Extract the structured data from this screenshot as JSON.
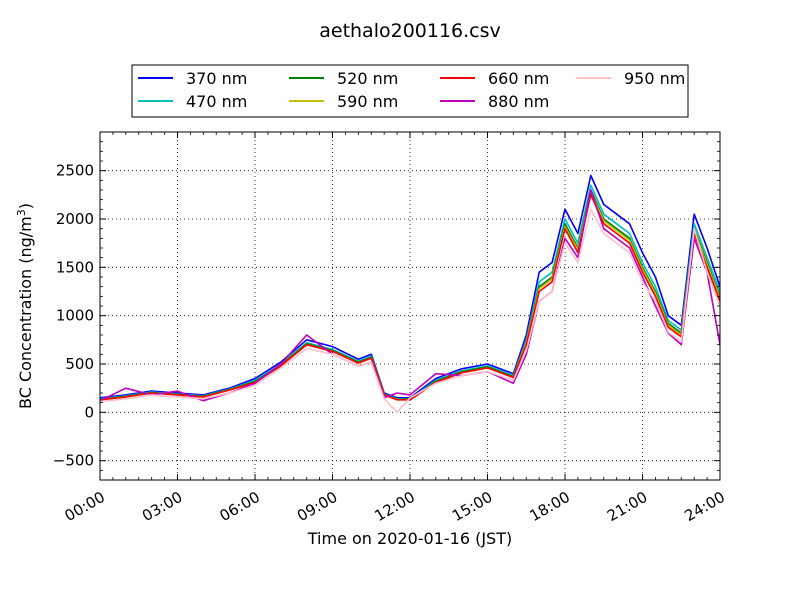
{
  "chart_data": {
    "type": "line",
    "title": "aethalo200116.csv",
    "xlabel": "Time on 2020-01-16 (JST)",
    "ylabel_main": "BC Concentration (ng/m",
    "ylabel_sup": "3",
    "ylabel_end": ")",
    "xlim": [
      0,
      24
    ],
    "ylim": [
      -700,
      2900
    ],
    "x_ticks": [
      0,
      3,
      6,
      9,
      12,
      15,
      18,
      21,
      24
    ],
    "x_tick_labels": [
      "00:00",
      "03:00",
      "06:00",
      "09:00",
      "12:00",
      "15:00",
      "18:00",
      "21:00",
      "24:00"
    ],
    "y_ticks": [
      -500,
      0,
      500,
      1000,
      1500,
      2000,
      2500
    ],
    "y_tick_labels": [
      "−500",
      "0",
      "500",
      "1000",
      "1500",
      "2000",
      "2500"
    ],
    "grid": true,
    "grid_style": "dotted",
    "legend_position": "top, above plot",
    "x": [
      0,
      1,
      2,
      3,
      4,
      5,
      6,
      7,
      8,
      9,
      10,
      10.5,
      11,
      11.5,
      12,
      13,
      14,
      15,
      16,
      16.5,
      17,
      17.5,
      18,
      18.5,
      19,
      19.5,
      20,
      20.5,
      21,
      21.5,
      22,
      22.5,
      23,
      23.5,
      24
    ],
    "series": [
      {
        "name": "370 nm",
        "color": "#0000ff",
        "values": [
          150,
          180,
          220,
          200,
          180,
          250,
          350,
          520,
          750,
          680,
          550,
          600,
          200,
          150,
          150,
          350,
          450,
          500,
          400,
          800,
          1450,
          1550,
          2100,
          1850,
          2450,
          2150,
          2050,
          1950,
          1650,
          1400,
          1000,
          900,
          2050,
          1700,
          1300
        ]
      },
      {
        "name": "470 nm",
        "color": "#00bfbf",
        "values": [
          140,
          170,
          210,
          190,
          170,
          240,
          330,
          500,
          720,
          650,
          530,
          580,
          190,
          140,
          140,
          330,
          430,
          480,
          380,
          750,
          1350,
          1450,
          2000,
          1750,
          2350,
          2050,
          1950,
          1850,
          1550,
          1300,
          950,
          850,
          1950,
          1600,
          1250
        ]
      },
      {
        "name": "520 nm",
        "color": "#008000",
        "values": [
          135,
          165,
          205,
          185,
          165,
          235,
          320,
          490,
          710,
          640,
          520,
          570,
          185,
          135,
          135,
          320,
          420,
          470,
          370,
          730,
          1300,
          1400,
          1950,
          1700,
          2300,
          2000,
          1900,
          1800,
          1500,
          1250,
          920,
          820,
          1900,
          1550,
          1200
        ]
      },
      {
        "name": "590 nm",
        "color": "#bfbf00",
        "values": [
          130,
          160,
          200,
          180,
          160,
          230,
          310,
          480,
          700,
          630,
          510,
          560,
          180,
          130,
          130,
          310,
          410,
          460,
          360,
          720,
          1280,
          1380,
          1920,
          1680,
          2280,
          1980,
          1880,
          1780,
          1480,
          1230,
          900,
          800,
          1880,
          1530,
          1180
        ]
      },
      {
        "name": "660 nm",
        "color": "#ff0000",
        "values": [
          130,
          160,
          200,
          180,
          160,
          230,
          310,
          480,
          700,
          630,
          510,
          560,
          180,
          130,
          130,
          310,
          410,
          460,
          360,
          700,
          1250,
          1350,
          1900,
          1650,
          2250,
          1950,
          1850,
          1750,
          1450,
          1200,
          880,
          780,
          1850,
          1500,
          1150
        ]
      },
      {
        "name": "880 nm",
        "color": "#bf00bf",
        "values": [
          120,
          250,
          180,
          220,
          120,
          200,
          300,
          500,
          800,
          600,
          480,
          520,
          150,
          200,
          180,
          400,
          380,
          420,
          300,
          600,
          1150,
          1250,
          1800,
          1600,
          2300,
          1900,
          1800,
          1700,
          1400,
          1100,
          820,
          700,
          1800,
          1450,
          700
        ]
      },
      {
        "name": "950 nm",
        "color": "#ffc0cb",
        "values": [
          110,
          140,
          180,
          160,
          140,
          200,
          280,
          460,
          660,
          600,
          480,
          520,
          140,
          0,
          150,
          300,
          380,
          420,
          330,
          640,
          1150,
          1250,
          1750,
          1550,
          2100,
          1850,
          1750,
          1650,
          1350,
          1150,
          830,
          730,
          1900,
          1450,
          1100
        ]
      }
    ]
  }
}
